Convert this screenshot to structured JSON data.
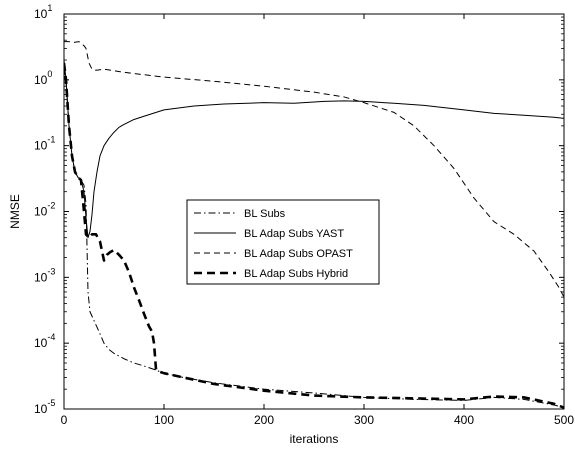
{
  "chart_data": {
    "type": "line",
    "title": "",
    "xlabel": "iterations",
    "ylabel": "NMSE",
    "xlim": [
      0,
      500
    ],
    "ylim": [
      1e-05,
      10
    ],
    "yscale": "log",
    "grid": false,
    "legend_position": "center",
    "x_ticks": [
      0,
      100,
      200,
      300,
      400,
      500
    ],
    "x_tick_labels": [
      "0",
      "100",
      "200",
      "300",
      "400",
      "500"
    ],
    "y_ticks": [
      1e-05,
      0.0001,
      0.001,
      0.01,
      0.1,
      1,
      10
    ],
    "y_tick_labels": [
      {
        "base": "10",
        "exp": "-5"
      },
      {
        "base": "10",
        "exp": "-4"
      },
      {
        "base": "10",
        "exp": "-3"
      },
      {
        "base": "10",
        "exp": "-2"
      },
      {
        "base": "10",
        "exp": "-1"
      },
      {
        "base": "10",
        "exp": "0"
      },
      {
        "base": "10",
        "exp": "1"
      }
    ],
    "series": [
      {
        "name": "BL Subs",
        "style": "dashdot",
        "color": "#000000",
        "points": [
          [
            0,
            1.5
          ],
          [
            2,
            1.0
          ],
          [
            5,
            0.2
          ],
          [
            8,
            0.07
          ],
          [
            11,
            0.04
          ],
          [
            14,
            0.033
          ],
          [
            17,
            0.03
          ],
          [
            20,
            0.025
          ],
          [
            22,
            0.013
          ],
          [
            23,
            0.003
          ],
          [
            24,
            0.0006
          ],
          [
            26,
            0.0003
          ],
          [
            30,
            0.00022
          ],
          [
            35,
            0.00015
          ],
          [
            40,
            0.0001
          ],
          [
            45,
            8e-05
          ],
          [
            50,
            7e-05
          ],
          [
            60,
            5.8e-05
          ],
          [
            70,
            5e-05
          ],
          [
            80,
            4.5e-05
          ],
          [
            90,
            4e-05
          ],
          [
            100,
            3.5e-05
          ],
          [
            120,
            3e-05
          ],
          [
            150,
            2.5e-05
          ],
          [
            200,
            2e-05
          ],
          [
            250,
            1.75e-05
          ],
          [
            300,
            1.5e-05
          ],
          [
            350,
            1.4e-05
          ],
          [
            400,
            1.35e-05
          ],
          [
            430,
            1.5e-05
          ],
          [
            460,
            1.4e-05
          ],
          [
            490,
            1.15e-05
          ],
          [
            500,
            1.05e-05
          ]
        ]
      },
      {
        "name": "BL Adap Subs YAST",
        "style": "solid",
        "color": "#000000",
        "points": [
          [
            0,
            2.0
          ],
          [
            2,
            1.0
          ],
          [
            5,
            0.2
          ],
          [
            8,
            0.07
          ],
          [
            11,
            0.04
          ],
          [
            14,
            0.033
          ],
          [
            17,
            0.03
          ],
          [
            20,
            0.02
          ],
          [
            22,
            0.008
          ],
          [
            24,
            0.004
          ],
          [
            26,
            0.005
          ],
          [
            28,
            0.009
          ],
          [
            30,
            0.02
          ],
          [
            33,
            0.04
          ],
          [
            36,
            0.07
          ],
          [
            40,
            0.1
          ],
          [
            45,
            0.13
          ],
          [
            50,
            0.16
          ],
          [
            55,
            0.19
          ],
          [
            60,
            0.21
          ],
          [
            70,
            0.25
          ],
          [
            80,
            0.28
          ],
          [
            100,
            0.35
          ],
          [
            130,
            0.4
          ],
          [
            160,
            0.43
          ],
          [
            200,
            0.45
          ],
          [
            230,
            0.44
          ],
          [
            260,
            0.47
          ],
          [
            280,
            0.48
          ],
          [
            300,
            0.47
          ],
          [
            330,
            0.44
          ],
          [
            360,
            0.41
          ],
          [
            400,
            0.35
          ],
          [
            430,
            0.31
          ],
          [
            460,
            0.29
          ],
          [
            490,
            0.27
          ],
          [
            500,
            0.26
          ]
        ]
      },
      {
        "name": "BL Adap Subs OPAST",
        "style": "dashed",
        "color": "#000000",
        "points": [
          [
            0,
            3.8
          ],
          [
            5,
            3.8
          ],
          [
            10,
            3.7
          ],
          [
            15,
            3.8
          ],
          [
            18,
            3.5
          ],
          [
            20,
            3.3
          ],
          [
            22,
            3.0
          ],
          [
            25,
            1.8
          ],
          [
            28,
            1.45
          ],
          [
            32,
            1.4
          ],
          [
            40,
            1.45
          ],
          [
            60,
            1.3
          ],
          [
            100,
            1.1
          ],
          [
            150,
            0.95
          ],
          [
            200,
            0.8
          ],
          [
            250,
            0.65
          ],
          [
            280,
            0.55
          ],
          [
            300,
            0.45
          ],
          [
            330,
            0.32
          ],
          [
            350,
            0.2
          ],
          [
            370,
            0.1
          ],
          [
            390,
            0.045
          ],
          [
            410,
            0.016
          ],
          [
            430,
            0.007
          ],
          [
            450,
            0.0045
          ],
          [
            470,
            0.0025
          ],
          [
            485,
            0.0012
          ],
          [
            495,
            0.0007
          ],
          [
            500,
            0.0005
          ]
        ]
      },
      {
        "name": "BL Adap Subs Hybrid",
        "style": "thickdashed",
        "color": "#000000",
        "points": [
          [
            0,
            1.8
          ],
          [
            2,
            1.0
          ],
          [
            5,
            0.2
          ],
          [
            8,
            0.07
          ],
          [
            11,
            0.04
          ],
          [
            14,
            0.033
          ],
          [
            17,
            0.03
          ],
          [
            20,
            0.01
          ],
          [
            22,
            0.0045
          ],
          [
            25,
            0.004
          ],
          [
            28,
            0.0045
          ],
          [
            32,
            0.0045
          ],
          [
            36,
            0.0035
          ],
          [
            40,
            0.0018
          ],
          [
            43,
            0.0022
          ],
          [
            46,
            0.0024
          ],
          [
            50,
            0.0026
          ],
          [
            55,
            0.0022
          ],
          [
            60,
            0.0018
          ],
          [
            65,
            0.0012
          ],
          [
            70,
            0.0007
          ],
          [
            75,
            0.00045
          ],
          [
            80,
            0.00028
          ],
          [
            85,
            0.00018
          ],
          [
            88,
            0.00015
          ],
          [
            90,
            0.0001
          ],
          [
            92,
            4e-05
          ],
          [
            95,
            3.7e-05
          ],
          [
            100,
            3.5e-05
          ],
          [
            120,
            3e-05
          ],
          [
            150,
            2.4e-05
          ],
          [
            200,
            1.9e-05
          ],
          [
            250,
            1.6e-05
          ],
          [
            300,
            1.5e-05
          ],
          [
            350,
            1.45e-05
          ],
          [
            400,
            1.4e-05
          ],
          [
            430,
            1.55e-05
          ],
          [
            460,
            1.5e-05
          ],
          [
            490,
            1.2e-05
          ],
          [
            500,
            1.05e-05
          ]
        ]
      }
    ]
  }
}
